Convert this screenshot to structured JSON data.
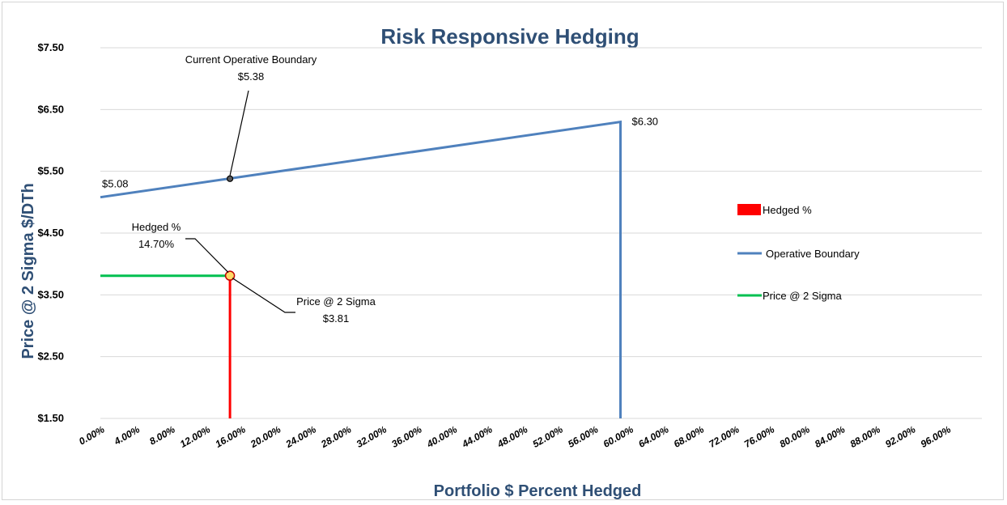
{
  "chart_data": {
    "type": "line",
    "title": "Risk Responsive Hedging",
    "xlabel": "Portfolio $ Percent Hedged",
    "ylabel": "Price @ 2 Sigma $/DTh",
    "xlim": [
      0,
      100
    ],
    "ylim": [
      1.5,
      7.5
    ],
    "grid": true,
    "legend_position": "right",
    "y_ticks": [
      "$1.50",
      "$2.50",
      "$3.50",
      "$4.50",
      "$5.50",
      "$6.50",
      "$7.50"
    ],
    "x_ticks": [
      "0.00%",
      "4.00%",
      "8.00%",
      "12.00%",
      "16.00%",
      "20.00%",
      "24.00%",
      "28.00%",
      "32.00%",
      "36.00%",
      "40.00%",
      "44.00%",
      "48.00%",
      "52.00%",
      "56.00%",
      "60.00%",
      "64.00%",
      "68.00%",
      "72.00%",
      "76.00%",
      "80.00%",
      "84.00%",
      "88.00%",
      "92.00%",
      "96.00%"
    ],
    "series": [
      {
        "name": "Hedged %",
        "color": "#ff0000",
        "x": [
          14.7,
          14.7
        ],
        "y": [
          1.5,
          3.81
        ]
      },
      {
        "name": "Operative Boundary",
        "color": "#4f81bd",
        "x": [
          0,
          59,
          59
        ],
        "y": [
          5.08,
          6.3,
          1.5
        ]
      },
      {
        "name": "Price @ 2 Sigma",
        "color": "#00c050",
        "x": [
          0,
          14.7
        ],
        "y": [
          3.81,
          3.81
        ]
      }
    ],
    "annotations": [
      {
        "lines": [
          "Current Operative Boundary",
          "$5.38"
        ],
        "x": 14.7,
        "y": 5.38
      },
      {
        "lines": [
          "Hedged %",
          "14.70%"
        ],
        "x": 14.7,
        "y": 3.81
      },
      {
        "lines": [
          "Price @ 2 Sigma",
          "$3.81"
        ],
        "x": 14.7,
        "y": 3.81
      }
    ],
    "data_labels": [
      {
        "text": "$5.08",
        "x": 0,
        "y": 5.08
      },
      {
        "text": "$6.30",
        "x": 59,
        "y": 6.3
      }
    ]
  }
}
